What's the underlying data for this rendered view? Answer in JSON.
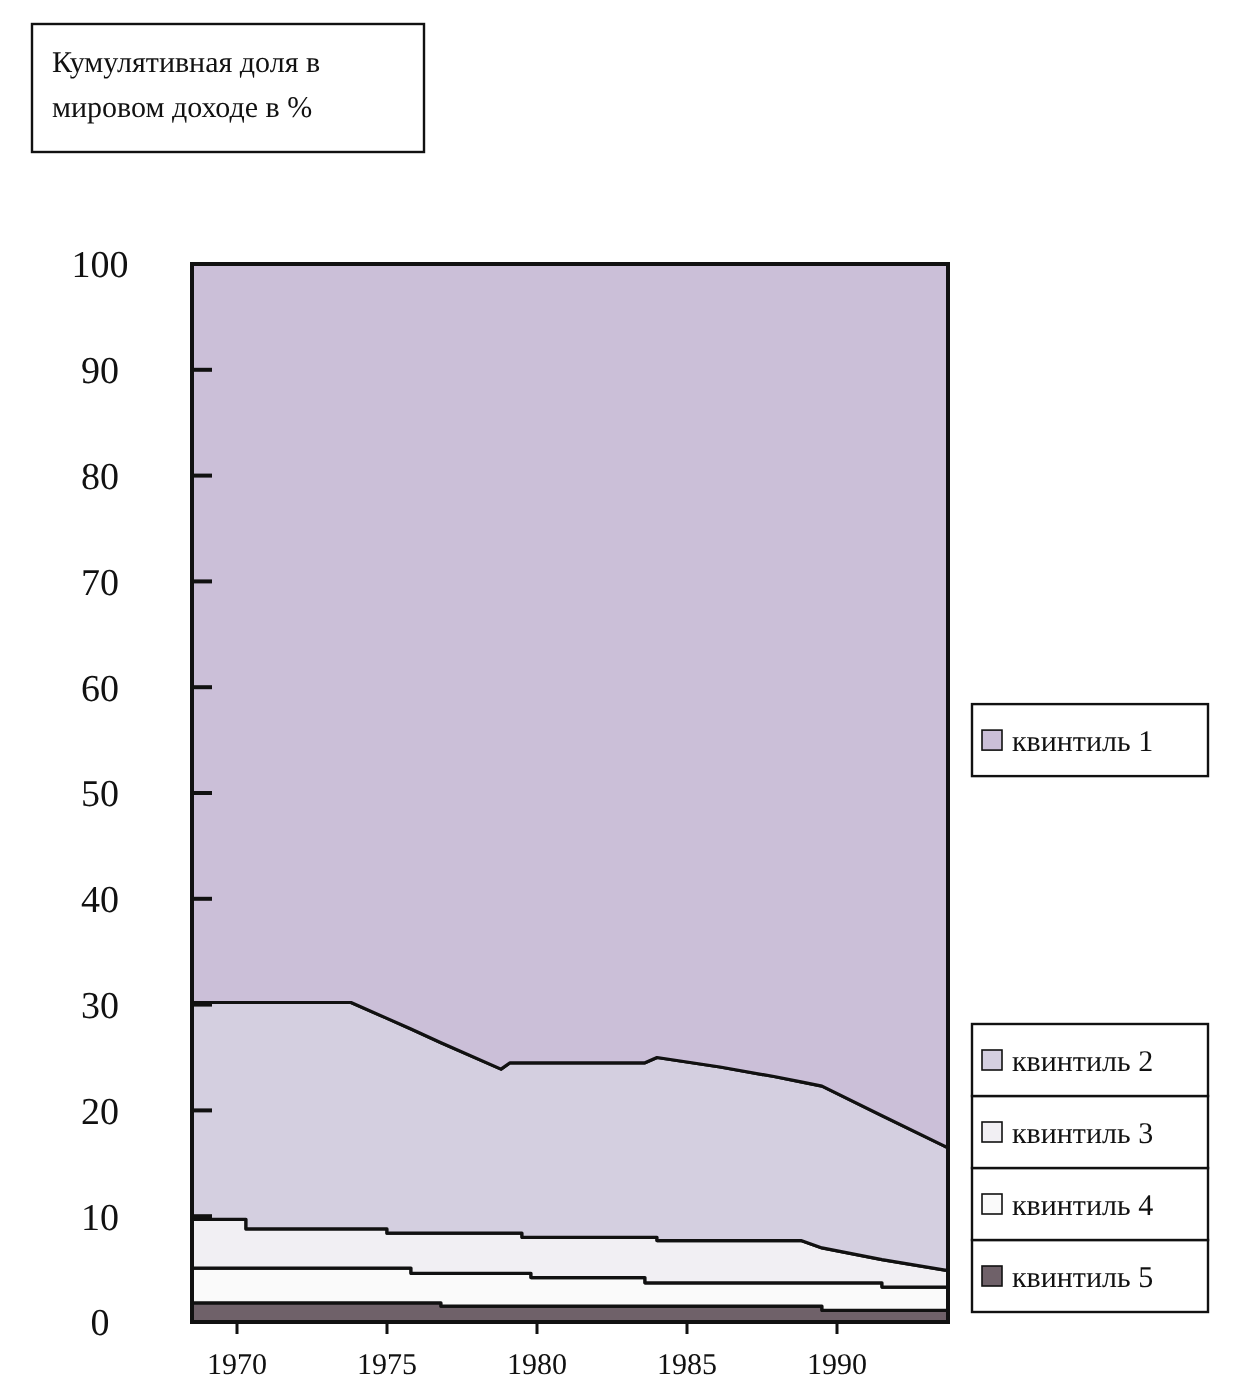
{
  "chart_data": {
    "type": "area",
    "ylabel": "Кумулятивная доля в мировом доходе в %",
    "stacked": true,
    "x": [
      1968.5,
      1970.3,
      1970.3,
      1973.8,
      1975.0,
      1975.0,
      1975.8,
      1975.8,
      1976.8,
      1976.8,
      1978.8,
      1979.1,
      1979.5,
      1979.5,
      1979.8,
      1979.8,
      1983.6,
      1983.6,
      1984.0,
      1984.0,
      1986.1,
      1987.9,
      1988.8,
      1989.5,
      1989.5,
      1991.5,
      1991.5,
      1993.6,
      1993.7
    ],
    "xlim": [
      1968.5,
      1993.7
    ],
    "xticks": [
      1970,
      1975,
      1980,
      1985,
      1990
    ],
    "ylim": [
      0,
      100
    ],
    "yticks": [
      0,
      10,
      20,
      30,
      40,
      50,
      60,
      70,
      80,
      90,
      100
    ],
    "legend": "right",
    "series": [
      {
        "name": "квинтиль 5",
        "color": "#6f6169",
        "values": [
          1.8,
          1.8,
          1.8,
          1.8,
          1.8,
          1.8,
          1.8,
          1.8,
          1.8,
          1.5,
          1.5,
          1.5,
          1.5,
          1.5,
          1.5,
          1.5,
          1.5,
          1.5,
          1.5,
          1.5,
          1.5,
          1.5,
          1.5,
          1.5,
          1.1,
          1.1,
          1.1,
          1.1,
          1.1
        ]
      },
      {
        "name": "квинтиль 4",
        "color": "#fafafa",
        "values": [
          3.3,
          3.3,
          3.3,
          3.3,
          3.3,
          3.3,
          3.3,
          2.8,
          2.8,
          3.1,
          3.1,
          3.1,
          3.1,
          3.1,
          3.1,
          2.7,
          2.7,
          2.2,
          2.2,
          2.2,
          2.2,
          2.2,
          2.2,
          2.2,
          2.6,
          2.6,
          2.2,
          2.2,
          2.2
        ]
      },
      {
        "name": "квинтиль 3",
        "color": "#f1eff3",
        "values": [
          4.6,
          4.6,
          3.7,
          3.7,
          3.7,
          3.3,
          3.3,
          3.8,
          3.8,
          3.8,
          3.8,
          3.8,
          3.8,
          3.4,
          3.4,
          3.8,
          3.8,
          4.3,
          4.3,
          4.0,
          4.0,
          4.0,
          4.0,
          3.3,
          3.3,
          2.2,
          2.6,
          1.6,
          1.6
        ]
      },
      {
        "name": "квинтиль 2",
        "color": "#d4cfe0",
        "values": [
          20.5,
          20.5,
          21.4,
          21.4,
          19.9,
          20.3,
          19.3,
          19.3,
          18.0,
          18.0,
          15.5,
          16.1,
          16.1,
          16.5,
          16.5,
          16.5,
          16.5,
          16.5,
          17.0,
          17.3,
          16.4,
          15.5,
          15.0,
          15.3,
          15.3,
          13.6,
          13.6,
          11.7,
          11.6
        ]
      },
      {
        "name": "квинтиль 1",
        "color": "#cbbfd8",
        "values": [
          69.8,
          69.8,
          69.8,
          69.8,
          71.3,
          71.3,
          72.3,
          72.3,
          73.6,
          73.6,
          76.1,
          75.5,
          75.5,
          75.5,
          75.5,
          75.5,
          75.5,
          75.5,
          75.0,
          75.0,
          75.9,
          76.8,
          77.3,
          77.7,
          77.7,
          80.5,
          80.5,
          83.4,
          83.5
        ]
      }
    ]
  }
}
